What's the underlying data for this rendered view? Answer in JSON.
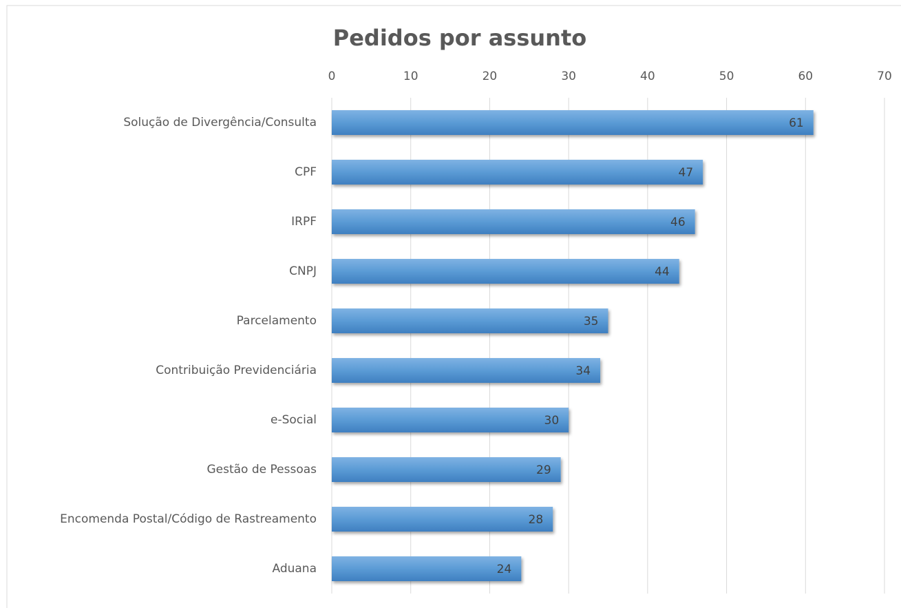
{
  "chart_data": {
    "type": "bar",
    "orientation": "horizontal",
    "title": "Pedidos por assunto",
    "categories": [
      "Solução de Divergência/Consulta",
      "CPF",
      "IRPF",
      "CNPJ",
      "Parcelamento",
      "Contribuição Previdenciária",
      "e-Social",
      "Gestão de Pessoas",
      "Encomenda Postal/Código de Rastreamento",
      "Aduana"
    ],
    "values": [
      61,
      47,
      46,
      44,
      35,
      34,
      30,
      29,
      28,
      24
    ],
    "color": "#5b9bd5",
    "xlim": [
      0,
      70
    ],
    "xticks": [
      0,
      10,
      20,
      30,
      40,
      50,
      60,
      70
    ],
    "grid": true
  }
}
